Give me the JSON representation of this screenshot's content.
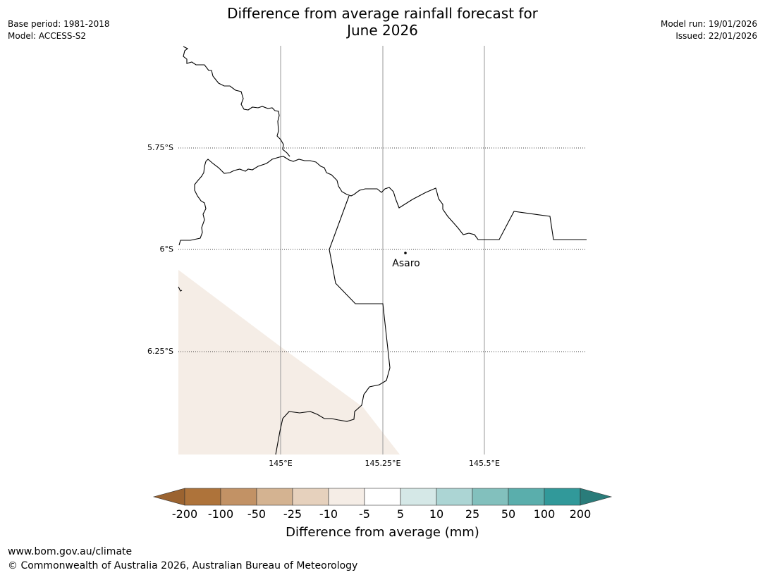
{
  "header": {
    "title_line1": "Difference from average rainfall forecast for",
    "title_line2": "June 2026",
    "base_period": "Base period: 1981-2018",
    "model": "Model: ACCESS-S2",
    "model_run": "Model run: 19/01/2026",
    "issued": "Issued: 22/01/2026"
  },
  "map": {
    "lat_labels": [
      "5.75°S",
      "6°S",
      "6.25°S"
    ],
    "lon_labels": [
      "145°E",
      "145.25°E",
      "145.5°E"
    ],
    "place_label": "Asaro",
    "shaded_category": "-10 to -5"
  },
  "colorbar": {
    "title": "Difference from average (mm)",
    "ticks": [
      "-200",
      "-100",
      "-50",
      "-25",
      "-10",
      "-5",
      "5",
      "10",
      "25",
      "50",
      "100",
      "200"
    ],
    "colors": {
      "below": "#9b6330",
      "bins": [
        "#ae733a",
        "#c29265",
        "#d4b391",
        "#e6d1bd",
        "#f5ede6",
        "#ffffff",
        "#d5e8e7",
        "#acd5d4",
        "#82c0bd",
        "#5aaeac",
        "#31999a"
      ],
      "above": "#2a7c7a"
    }
  },
  "footer": {
    "url": "www.bom.gov.au/climate",
    "copyright": "© Commonwealth of Australia 2026, Australian Bureau of Meteorology"
  }
}
